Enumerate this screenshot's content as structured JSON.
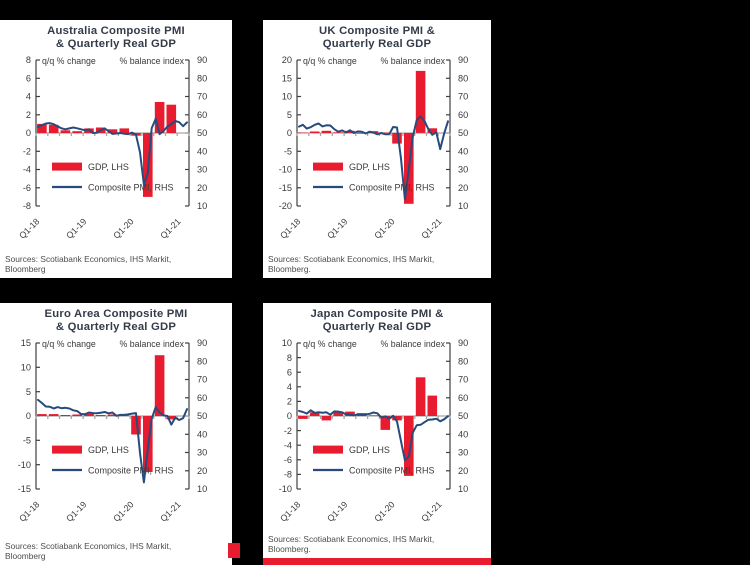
{
  "colors": {
    "background": "#000000",
    "panel_bg": "#ffffff",
    "bar_red": "#e81c2e",
    "line_blue": "#274b7d",
    "title_text": "#343b49",
    "axis_text": "#3a3a3a",
    "zero_line": "#a6a6a6",
    "source_text": "#4d4d4d"
  },
  "chart_data": [
    {
      "region": "Australia",
      "type": "combo-bar-line",
      "title": {
        "line1": "Australia Composite PMI",
        "line2": "& Quarterly Real GDP"
      },
      "left_axis": {
        "label": "q/q % change",
        "min": -8,
        "max": 8,
        "step": 2,
        "ticks": [
          8,
          6,
          4,
          2,
          0,
          -2,
          -4,
          -6,
          -8
        ]
      },
      "right_axis": {
        "label": "% balance index",
        "min": 10,
        "max": 90,
        "step": 10,
        "ticks": [
          90,
          80,
          70,
          60,
          50,
          40,
          30,
          20,
          10
        ]
      },
      "x_tick_labels": [
        "Q1-18",
        "Q1-19",
        "Q1-20",
        "Q1-21"
      ],
      "legend": {
        "bar_label": "GDP, LHS",
        "line_label": "Composite PMI, RHS"
      },
      "sources": {
        "line1": "Sources: Scotiabank Economics, IHS Markit,",
        "line2": "Bloomberg"
      },
      "gdp_quarterly": {
        "categories": [
          "Q1-18",
          "Q2-18",
          "Q3-18",
          "Q4-18",
          "Q1-19",
          "Q2-19",
          "Q3-19",
          "Q4-19",
          "Q1-20",
          "Q2-20",
          "Q3-20",
          "Q4-20"
        ],
        "values": [
          1.0,
          0.9,
          0.3,
          0.2,
          0.5,
          0.6,
          0.4,
          0.5,
          -0.3,
          -7.0,
          3.4,
          3.1
        ]
      },
      "pmi_monthly": {
        "start": "Jan-18",
        "end": "Mar-21",
        "values": [
          53.4,
          54.3,
          55.2,
          55.4,
          54.8,
          53.6,
          52.6,
          52.0,
          52.5,
          53.0,
          52.6,
          52.0,
          51.5,
          52.0,
          50.0,
          50.1,
          51.6,
          52.5,
          51.0,
          49.5,
          49.7,
          50.0,
          49.6,
          49.4,
          50.2,
          49.0,
          39.4,
          21.7,
          28.1,
          52.7,
          57.8,
          49.4,
          51.1,
          53.5,
          54.9,
          56.6,
          55.9,
          53.7,
          55.8
        ]
      }
    },
    {
      "region": "UK",
      "type": "combo-bar-line",
      "title": {
        "line1": "UK Composite PMI &",
        "line2": "Quarterly Real GDP"
      },
      "left_axis": {
        "label": "q/q % change",
        "min": -20,
        "max": 20,
        "step": 5,
        "ticks": [
          20,
          15,
          10,
          5,
          0,
          -5,
          -10,
          -15,
          -20
        ]
      },
      "right_axis": {
        "label": "% balance index",
        "min": 10,
        "max": 90,
        "step": 10,
        "ticks": [
          90,
          80,
          70,
          60,
          50,
          40,
          30,
          20,
          10
        ]
      },
      "x_tick_labels": [
        "Q1-18",
        "Q1-19",
        "Q1-20",
        "Q1-21"
      ],
      "legend": {
        "bar_label": "GDP, LHS",
        "line_label": "Composite PMI, RHS"
      },
      "sources": {
        "line1": "Sources: Scotiabank Economics, IHS Markit,",
        "line2": "Bloomberg."
      },
      "gdp_quarterly": {
        "categories": [
          "Q1-18",
          "Q2-18",
          "Q3-18",
          "Q4-18",
          "Q1-19",
          "Q2-19",
          "Q3-19",
          "Q4-19",
          "Q1-20",
          "Q2-20",
          "Q3-20",
          "Q4-20"
        ],
        "values": [
          0.1,
          0.4,
          0.6,
          0.2,
          0.6,
          -0.2,
          0.5,
          0.1,
          -2.9,
          -19.4,
          17.0,
          1.3
        ]
      },
      "pmi_monthly": {
        "start": "Jan-18",
        "end": "Mar-21",
        "values": [
          53.5,
          54.5,
          52.4,
          53.2,
          54.5,
          55.2,
          53.6,
          54.2,
          54.1,
          52.1,
          50.7,
          51.4,
          50.3,
          51.5,
          50.0,
          50.9,
          50.7,
          49.7,
          50.7,
          50.2,
          49.3,
          50.0,
          49.3,
          49.3,
          53.3,
          53.0,
          36.0,
          13.8,
          30.0,
          47.7,
          57.0,
          59.1,
          56.5,
          52.1,
          49.0,
          50.4,
          41.2,
          49.6,
          56.4
        ]
      }
    },
    {
      "region": "Euro Area",
      "type": "combo-bar-line",
      "title": {
        "line1": "Euro Area Composite PMI",
        "line2": "& Quarterly Real GDP"
      },
      "left_axis": {
        "label": "q/q % change",
        "min": -15,
        "max": 15,
        "step": 5,
        "ticks": [
          15,
          10,
          5,
          0,
          -5,
          -10,
          -15
        ]
      },
      "right_axis": {
        "label": "% balance index",
        "min": 10,
        "max": 90,
        "step": 10,
        "ticks": [
          90,
          80,
          70,
          60,
          50,
          40,
          30,
          20,
          10
        ]
      },
      "x_tick_labels": [
        "Q1-18",
        "Q1-19",
        "Q1-20",
        "Q1-21"
      ],
      "legend": {
        "bar_label": "GDP, LHS",
        "line_label": "Composite PMI, RHS"
      },
      "sources": {
        "line1": "Sources: Scotiabank Economics, IHS Markit,",
        "line2": "Bloomberg"
      },
      "gdp_quarterly": {
        "categories": [
          "Q1-18",
          "Q2-18",
          "Q3-18",
          "Q4-18",
          "Q1-19",
          "Q2-19",
          "Q3-19",
          "Q4-19",
          "Q1-20",
          "Q2-20",
          "Q3-20",
          "Q4-20"
        ],
        "values": [
          0.4,
          0.4,
          0.2,
          0.3,
          0.5,
          0.2,
          0.3,
          0.1,
          -3.8,
          -11.5,
          12.5,
          -0.7
        ]
      },
      "pmi_monthly": {
        "start": "Jan-18",
        "end": "Mar-21",
        "values": [
          58.8,
          57.1,
          55.2,
          55.1,
          54.1,
          54.9,
          54.3,
          54.5,
          54.1,
          53.1,
          52.7,
          51.1,
          51.0,
          51.9,
          51.6,
          51.5,
          51.8,
          52.2,
          51.5,
          51.9,
          50.1,
          50.6,
          50.6,
          50.9,
          51.3,
          51.6,
          29.7,
          13.6,
          31.9,
          48.5,
          54.9,
          51.9,
          50.4,
          50.0,
          45.3,
          49.1,
          47.8,
          48.8,
          53.8
        ]
      }
    },
    {
      "region": "Japan",
      "type": "combo-bar-line",
      "title": {
        "line1": "Japan Composite PMI &",
        "line2": "Quarterly Real GDP"
      },
      "left_axis": {
        "label": "q/q % change",
        "min": -10,
        "max": 10,
        "step": 2,
        "ticks": [
          10,
          8,
          6,
          4,
          2,
          0,
          -2,
          -4,
          -6,
          -8,
          -10
        ]
      },
      "right_axis": {
        "label": "% balance index",
        "min": 10,
        "max": 90,
        "step": 10,
        "ticks": [
          90,
          80,
          70,
          60,
          50,
          40,
          30,
          20,
          10
        ]
      },
      "x_tick_labels": [
        "Q1-18",
        "Q1-19",
        "Q1-20",
        "Q1-21"
      ],
      "legend": {
        "bar_label": "GDP, LHS",
        "line_label": "Composite PMI, RHS"
      },
      "sources": {
        "line1": "Sources: Scotiabank Economics, IHS Markit,",
        "line2": "Bloomberg."
      },
      "gdp_quarterly": {
        "categories": [
          "Q1-18",
          "Q2-18",
          "Q3-18",
          "Q4-18",
          "Q1-19",
          "Q2-19",
          "Q3-19",
          "Q4-19",
          "Q1-20",
          "Q2-20",
          "Q3-20",
          "Q4-20"
        ],
        "values": [
          -0.4,
          0.5,
          -0.6,
          0.6,
          0.6,
          0.4,
          0.1,
          -1.9,
          -0.6,
          -8.2,
          5.3,
          2.8
        ]
      },
      "pmi_monthly": {
        "start": "Jan-18",
        "end": "Mar-21",
        "values": [
          52.8,
          52.2,
          51.3,
          53.1,
          51.7,
          52.1,
          51.8,
          52.0,
          50.7,
          52.5,
          52.4,
          52.0,
          50.9,
          50.7,
          50.4,
          50.8,
          50.7,
          50.8,
          51.2,
          51.9,
          51.5,
          49.1,
          49.8,
          48.6,
          50.1,
          47.0,
          36.2,
          25.8,
          27.8,
          40.8,
          44.9,
          45.2,
          46.6,
          48.0,
          48.1,
          48.5,
          47.1,
          48.2,
          49.9
        ]
      }
    }
  ]
}
